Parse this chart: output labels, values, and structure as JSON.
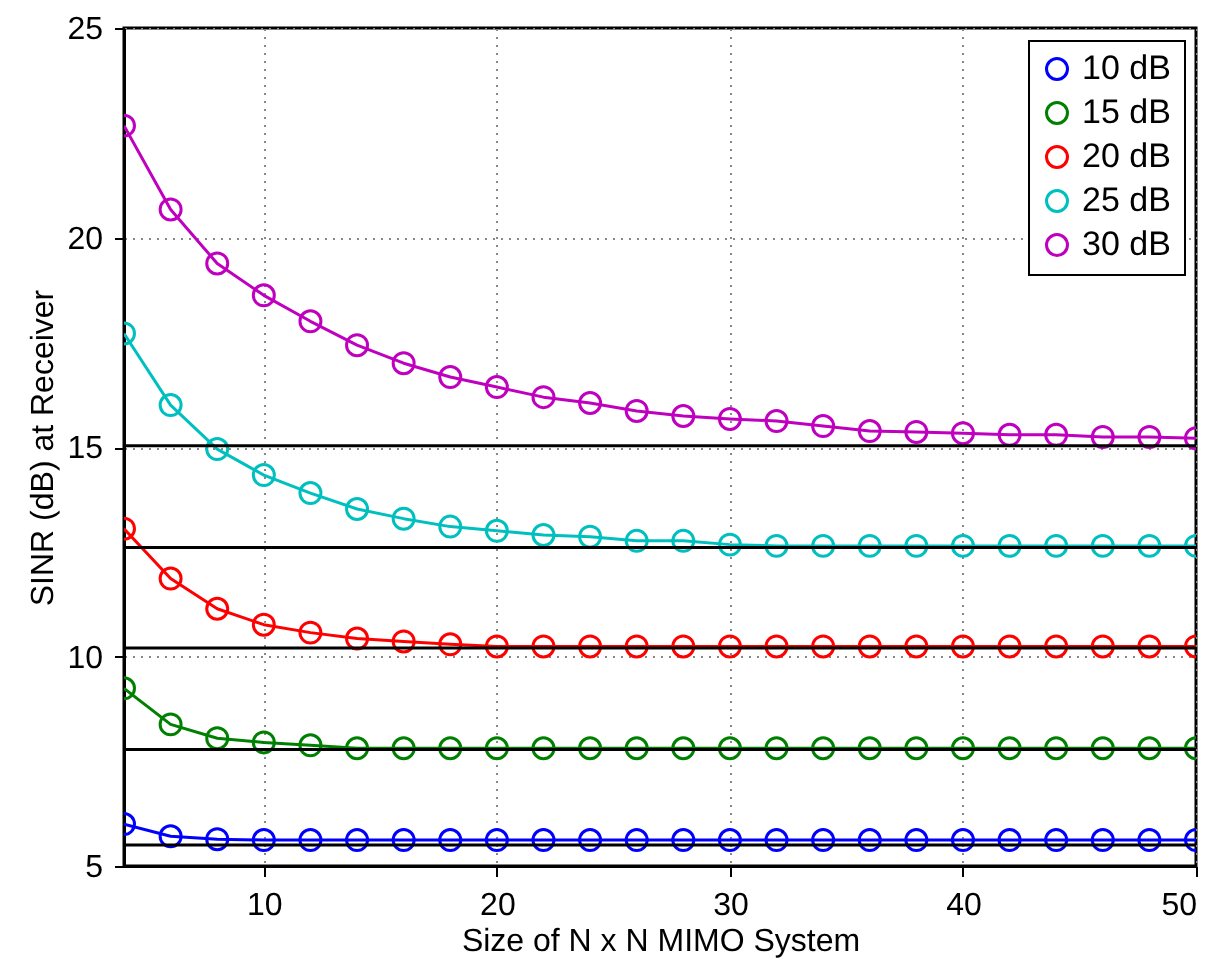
{
  "chart_data": {
    "type": "line",
    "xlabel": "Size of N x N MIMO System",
    "ylabel": "SINR (dB) at Receiver",
    "x": [
      4,
      6,
      8,
      10,
      12,
      14,
      16,
      18,
      20,
      22,
      24,
      26,
      28,
      30,
      32,
      34,
      36,
      38,
      40,
      42,
      44,
      46,
      48,
      50
    ],
    "series": [
      {
        "name": "10 dB",
        "color": "#0000ff",
        "values": [
          6.0,
          5.71,
          5.64,
          5.62,
          5.62,
          5.62,
          5.62,
          5.62,
          5.62,
          5.62,
          5.62,
          5.62,
          5.62,
          5.62,
          5.62,
          5.62,
          5.62,
          5.62,
          5.62,
          5.62,
          5.62,
          5.62,
          5.62,
          5.62
        ]
      },
      {
        "name": "15 dB",
        "color": "#008000",
        "values": [
          9.24,
          8.38,
          8.05,
          7.95,
          7.88,
          7.81,
          7.81,
          7.81,
          7.81,
          7.81,
          7.81,
          7.81,
          7.81,
          7.81,
          7.81,
          7.81,
          7.81,
          7.81,
          7.81,
          7.81,
          7.81,
          7.81,
          7.81,
          7.81
        ]
      },
      {
        "name": "20 dB",
        "color": "#ff0000",
        "values": [
          13.05,
          11.86,
          11.14,
          10.76,
          10.57,
          10.43,
          10.36,
          10.29,
          10.24,
          10.24,
          10.24,
          10.24,
          10.24,
          10.24,
          10.24,
          10.24,
          10.24,
          10.24,
          10.24,
          10.24,
          10.24,
          10.24,
          10.24,
          10.24
        ]
      },
      {
        "name": "25 dB",
        "color": "#00bfbf",
        "values": [
          17.71,
          16.0,
          14.95,
          14.33,
          13.9,
          13.52,
          13.29,
          13.1,
          13.0,
          12.9,
          12.86,
          12.76,
          12.76,
          12.67,
          12.64,
          12.64,
          12.64,
          12.64,
          12.64,
          12.64,
          12.64,
          12.64,
          12.64,
          12.64
        ]
      },
      {
        "name": "30 dB",
        "color": "#bf00bf",
        "values": [
          22.67,
          20.67,
          19.38,
          18.62,
          18.0,
          17.43,
          17.0,
          16.67,
          16.43,
          16.19,
          16.05,
          15.86,
          15.74,
          15.67,
          15.62,
          15.5,
          15.38,
          15.36,
          15.33,
          15.29,
          15.29,
          15.24,
          15.24,
          15.21
        ]
      }
    ],
    "ref_lines": [
      {
        "axis": "y",
        "value": 5.5,
        "color": "#000000"
      },
      {
        "axis": "y",
        "value": 7.78,
        "color": "#000000"
      },
      {
        "axis": "y",
        "value": 10.2,
        "color": "#000000"
      },
      {
        "axis": "y",
        "value": 12.6,
        "color": "#000000"
      },
      {
        "axis": "y",
        "value": 15.03,
        "color": "#000000"
      }
    ],
    "xlim": [
      4,
      50
    ],
    "xticks": [
      10,
      20,
      30,
      40,
      50
    ],
    "ylim": [
      5,
      25
    ],
    "yticks": [
      5,
      10,
      15,
      20,
      25
    ],
    "grid": true,
    "legend": "top right",
    "marker": "circle",
    "line_style": "solid"
  }
}
